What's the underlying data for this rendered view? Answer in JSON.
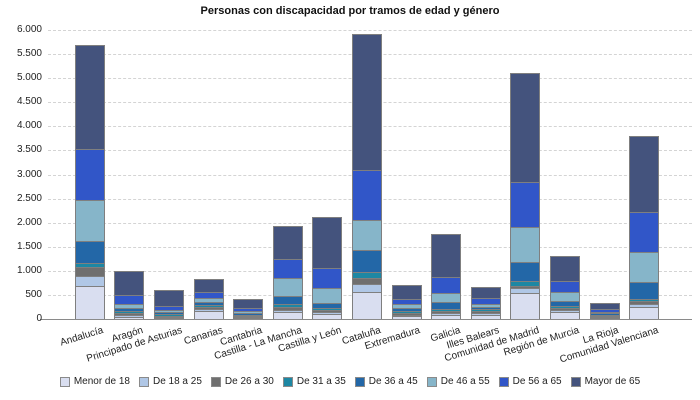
{
  "chart_data": {
    "type": "bar",
    "stacked": true,
    "title": "Personas con discapacidad por tramos de edad y género",
    "xlabel": "",
    "ylabel": "",
    "ylim": [
      0,
      6000
    ],
    "grid": "horizontal-dashed",
    "legend_position": "bottom",
    "categories": [
      "Andalucía",
      "Aragón",
      "Principado de Asturias",
      "Canarias",
      "Cantabria",
      "Castilla - La Mancha",
      "Castilla y León",
      "Cataluña",
      "Extremadura",
      "Galicia",
      "Illes Balears",
      "Comunidad de Madrid",
      "Región de Murcia",
      "La Rioja",
      "Comunidad Valenciana"
    ],
    "yticks": [
      {
        "value": 6000,
        "label": "6.000"
      },
      {
        "value": 5500,
        "label": "5.500"
      },
      {
        "value": 5000,
        "label": "5.000"
      },
      {
        "value": 4500,
        "label": "4.500"
      },
      {
        "value": 4000,
        "label": "4.000"
      },
      {
        "value": 3500,
        "label": "3.500"
      },
      {
        "value": 3000,
        "label": "3.000"
      },
      {
        "value": 2500,
        "label": "2.500"
      },
      {
        "value": 2000,
        "label": "2.000"
      },
      {
        "value": 1500,
        "label": "1.500"
      },
      {
        "value": 1000,
        "label": "1.000"
      },
      {
        "value": 500,
        "label": "500"
      },
      {
        "value": 0,
        "label": "0"
      }
    ],
    "series": [
      {
        "name": "Menor de 18",
        "color": "#d9def0",
        "values": [
          690,
          50,
          30,
          165,
          20,
          140,
          100,
          560,
          60,
          90,
          85,
          540,
          140,
          25,
          255
        ]
      },
      {
        "name": "De 18 a 25",
        "color": "#b0c7e6",
        "values": [
          210,
          40,
          20,
          35,
          20,
          50,
          40,
          165,
          30,
          35,
          40,
          110,
          35,
          20,
          55
        ]
      },
      {
        "name": "De 26 a 30",
        "color": "#6f6f6f",
        "values": [
          180,
          50,
          30,
          40,
          20,
          55,
          40,
          120,
          40,
          40,
          35,
          45,
          35,
          20,
          60
        ]
      },
      {
        "name": "De 31 a 35",
        "color": "#1d87a3",
        "values": [
          85,
          40,
          35,
          50,
          30,
          60,
          40,
          115,
          35,
          40,
          35,
          100,
          35,
          25,
          40
        ]
      },
      {
        "name": "De 36 a 45",
        "color": "#2367a7",
        "values": [
          460,
          60,
          50,
          70,
          35,
          160,
          105,
          455,
          70,
          140,
          50,
          395,
          95,
          35,
          350
        ]
      },
      {
        "name": "De 46 a 55",
        "color": "#86b5c9",
        "values": [
          850,
          90,
          50,
          90,
          40,
          375,
          310,
          615,
          75,
          185,
          70,
          720,
          195,
          30,
          620
        ]
      },
      {
        "name": "De 56 a 65",
        "color": "#3156c8",
        "values": [
          1050,
          190,
          85,
          115,
          60,
          390,
          415,
          1030,
          105,
          325,
          120,
          935,
          235,
          55,
          830
        ]
      },
      {
        "name": "Mayor de 65",
        "color": "#44537d",
        "values": [
          2160,
          500,
          330,
          265,
          185,
          675,
          1050,
          2830,
          290,
          885,
          220,
          2255,
          510,
          130,
          1570
        ]
      }
    ],
    "colors": {
      "background": "#ffffff",
      "grid": "#d4d4d4",
      "axis": "#8a8a8a",
      "bar_border": "#7f7f7f",
      "text": "#222222"
    }
  }
}
